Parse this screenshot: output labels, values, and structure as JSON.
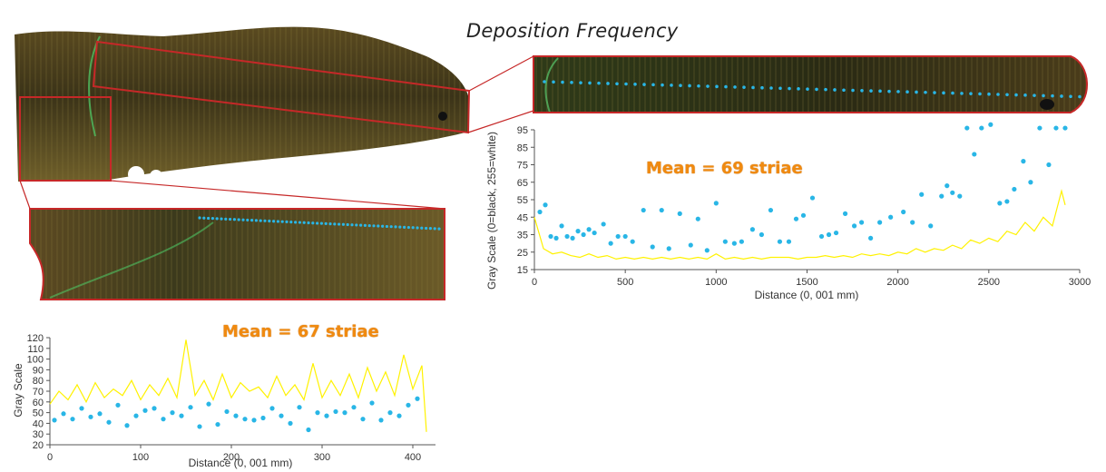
{
  "title": "Deposition Frequency",
  "panel_right": {
    "mean_label": "Mean = 69 striae"
  },
  "panel_left": {
    "mean_label": "Mean = 67 striae"
  },
  "colors": {
    "trace": "#fff200",
    "dots": "#29b6e6",
    "frame": "#c62828",
    "mean": "#f08a10"
  },
  "chart_data": [
    {
      "type": "line",
      "title": "",
      "xlabel": "Distance (0, 001 mm)",
      "ylabel": "Gray Scale (0=black, 255=white)",
      "xlim": [
        0,
        3000
      ],
      "ylim": [
        15,
        95
      ],
      "xticks": [
        0,
        500,
        1000,
        1500,
        2000,
        2500,
        3000
      ],
      "yticks": [
        15,
        25,
        35,
        45,
        55,
        65,
        75,
        85,
        95
      ],
      "grid": false,
      "series": [
        {
          "type": "line",
          "x": [
            0,
            50,
            100,
            150,
            200,
            250,
            300,
            350,
            400,
            450,
            500,
            550,
            600,
            650,
            700,
            750,
            800,
            850,
            900,
            950,
            1000,
            1050,
            1100,
            1150,
            1200,
            1250,
            1300,
            1350,
            1400,
            1450,
            1500,
            1550,
            1600,
            1650,
            1700,
            1750,
            1800,
            1850,
            1900,
            1950,
            2000,
            2050,
            2100,
            2150,
            2200,
            2250,
            2300,
            2350,
            2400,
            2450,
            2500,
            2550,
            2600,
            2650,
            2700,
            2750,
            2800,
            2850,
            2900,
            2920
          ],
          "y": [
            45,
            27,
            24,
            25,
            23,
            22,
            24,
            22,
            23,
            21,
            22,
            21,
            22,
            21,
            22,
            21,
            22,
            21,
            22,
            21,
            24,
            21,
            22,
            21,
            22,
            21,
            22,
            22,
            22,
            21,
            22,
            22,
            23,
            22,
            23,
            22,
            24,
            23,
            24,
            23,
            25,
            24,
            27,
            25,
            27,
            26,
            29,
            27,
            32,
            30,
            33,
            31,
            37,
            35,
            42,
            37,
            45,
            40,
            60,
            52
          ]
        },
        {
          "type": "scatter",
          "x": [
            30,
            60,
            90,
            120,
            150,
            180,
            210,
            240,
            270,
            300,
            330,
            380,
            420,
            460,
            500,
            540,
            600,
            650,
            700,
            740,
            800,
            860,
            900,
            950,
            1000,
            1050,
            1100,
            1140,
            1200,
            1250,
            1300,
            1350,
            1400,
            1440,
            1480,
            1530,
            1580,
            1620,
            1660,
            1710,
            1760,
            1800,
            1850,
            1900,
            1960,
            2030,
            2080,
            2130,
            2180,
            2240,
            2270,
            2300,
            2340,
            2380,
            2420,
            2460,
            2510,
            2560,
            2600,
            2640,
            2690,
            2730,
            2780,
            2830,
            2870,
            2920
          ],
          "y": [
            48,
            52,
            34,
            33,
            40,
            34,
            33,
            37,
            35,
            38,
            36,
            41,
            30,
            34,
            34,
            31,
            49,
            28,
            49,
            27,
            47,
            29,
            44,
            26,
            53,
            31,
            30,
            31,
            38,
            35,
            49,
            31,
            31,
            44,
            46,
            56,
            34,
            35,
            36,
            47,
            40,
            42,
            33,
            42,
            45,
            48,
            42,
            58,
            40,
            57,
            63,
            59,
            57,
            96,
            81,
            96,
            98,
            53,
            54,
            61,
            77,
            65,
            96,
            75,
            96,
            96
          ]
        }
      ]
    },
    {
      "type": "line",
      "title": "",
      "xlabel": "Distance (0, 001 mm)",
      "ylabel": "Gray Scale",
      "xlim": [
        0,
        420
      ],
      "ylim": [
        20,
        120
      ],
      "xticks": [
        0,
        100,
        200,
        300,
        400
      ],
      "yticks": [
        20,
        30,
        40,
        50,
        60,
        70,
        80,
        90,
        100,
        110,
        120
      ],
      "grid": false,
      "series": [
        {
          "type": "line",
          "x": [
            0,
            10,
            20,
            30,
            40,
            50,
            60,
            70,
            80,
            90,
            100,
            110,
            120,
            130,
            140,
            150,
            160,
            170,
            180,
            190,
            200,
            210,
            220,
            230,
            240,
            250,
            260,
            270,
            280,
            290,
            300,
            310,
            320,
            330,
            340,
            350,
            360,
            370,
            380,
            390,
            400,
            410,
            415
          ],
          "y": [
            58,
            70,
            62,
            76,
            60,
            78,
            64,
            72,
            66,
            80,
            62,
            76,
            66,
            82,
            64,
            118,
            66,
            80,
            62,
            86,
            64,
            78,
            70,
            74,
            64,
            84,
            66,
            76,
            62,
            96,
            64,
            80,
            66,
            86,
            64,
            92,
            70,
            88,
            66,
            104,
            72,
            94,
            32
          ]
        },
        {
          "type": "scatter",
          "x": [
            5,
            15,
            25,
            35,
            45,
            55,
            65,
            75,
            85,
            95,
            105,
            115,
            125,
            135,
            145,
            155,
            165,
            175,
            185,
            195,
            205,
            215,
            225,
            235,
            245,
            255,
            265,
            275,
            285,
            295,
            305,
            315,
            325,
            335,
            345,
            355,
            365,
            375,
            385,
            395,
            405
          ],
          "y": [
            43,
            49,
            44,
            54,
            46,
            49,
            41,
            57,
            38,
            47,
            52,
            54,
            44,
            50,
            47,
            55,
            37,
            58,
            39,
            51,
            47,
            44,
            43,
            45,
            54,
            47,
            40,
            55,
            34,
            50,
            47,
            51,
            50,
            55,
            44,
            59,
            43,
            50,
            47,
            57,
            63
          ]
        }
      ]
    }
  ]
}
